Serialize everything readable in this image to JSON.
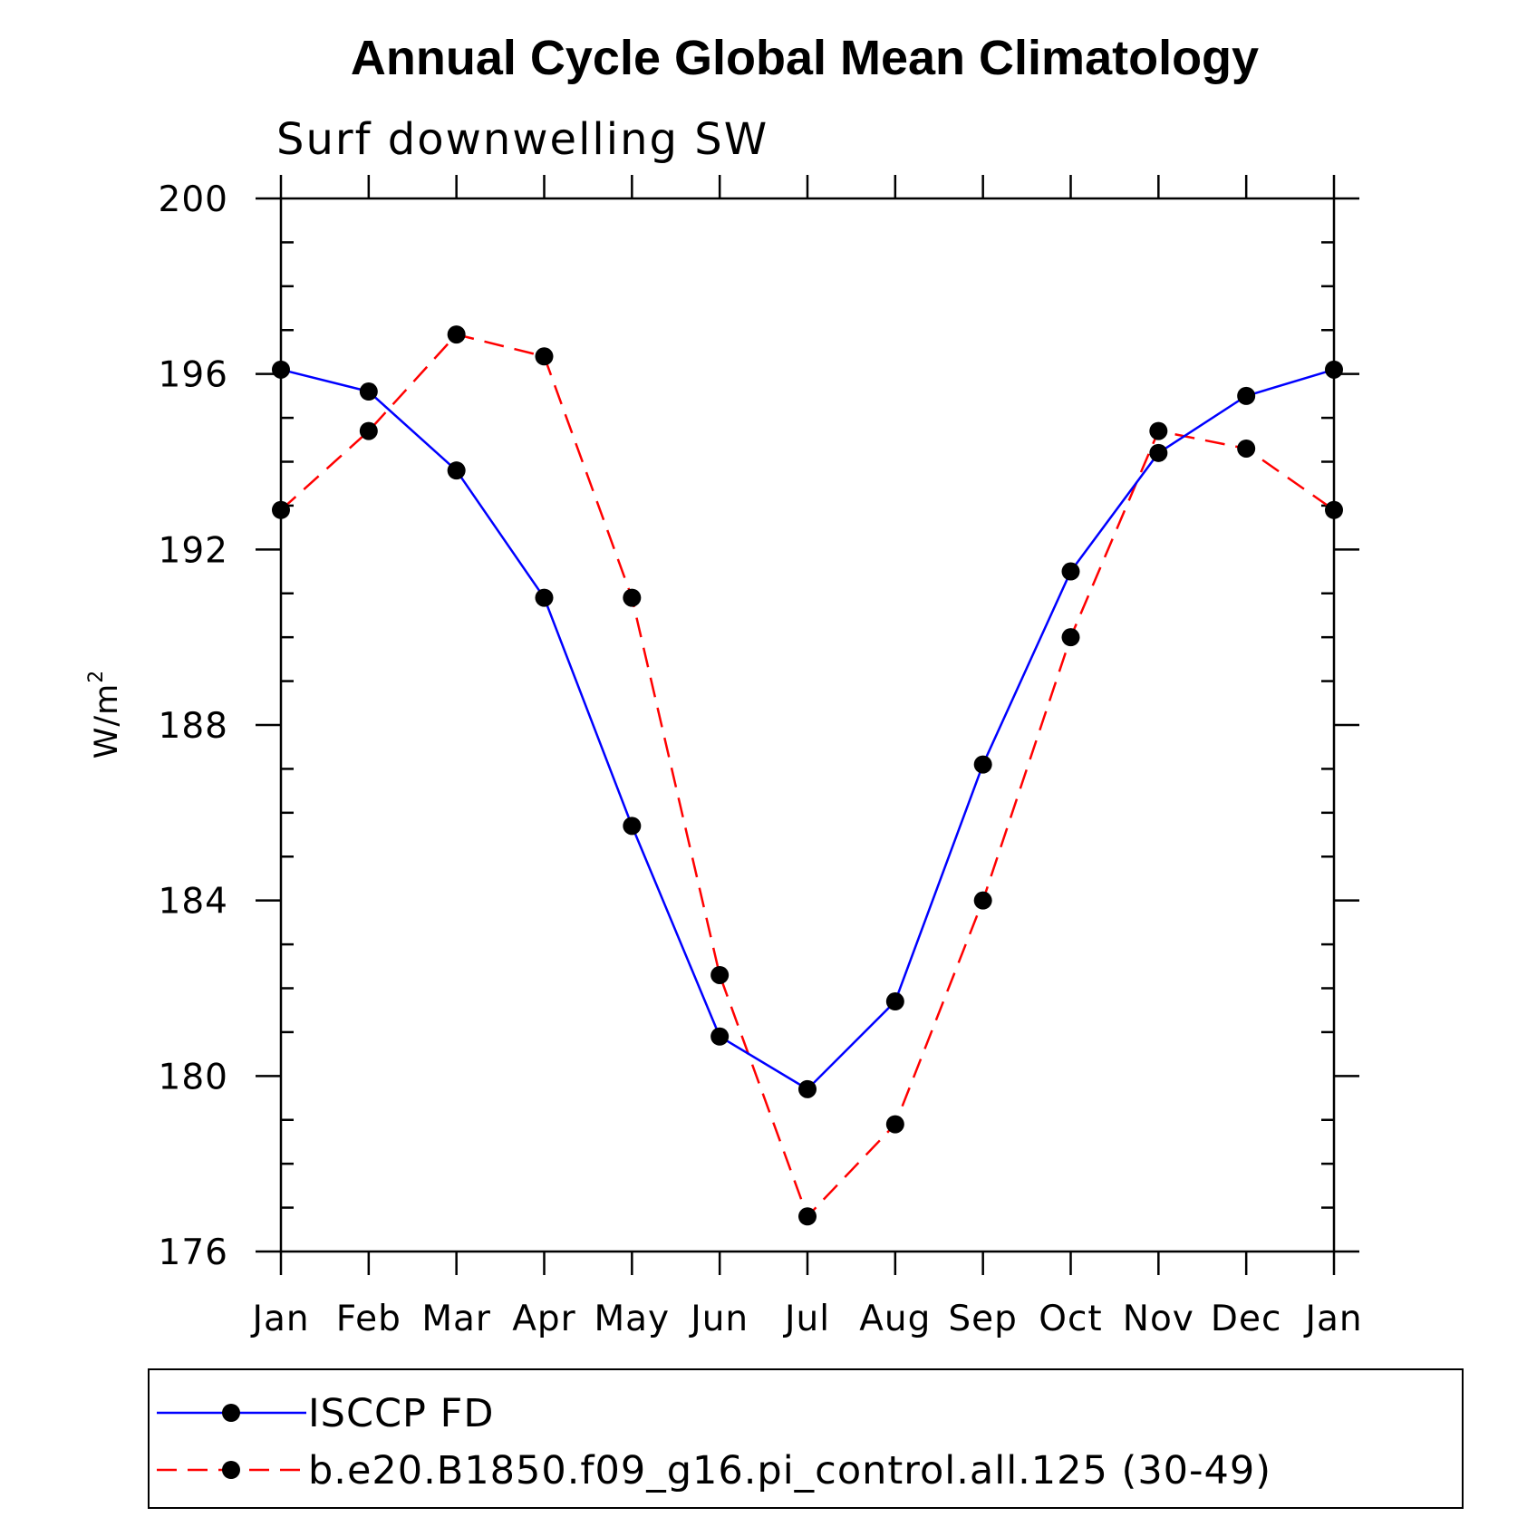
{
  "chart_data": {
    "type": "line",
    "title": "Annual Cycle Global Mean Climatology",
    "subtitle": "Surf downwelling SW",
    "xlabel": "",
    "ylabel": "W/m",
    "ylabel_superscript": "2",
    "categories": [
      "Jan",
      "Feb",
      "Mar",
      "Apr",
      "May",
      "Jun",
      "Jul",
      "Aug",
      "Sep",
      "Oct",
      "Nov",
      "Dec",
      "Jan"
    ],
    "ylim": [
      176,
      200
    ],
    "yticks": [
      176,
      180,
      184,
      188,
      192,
      196,
      200
    ],
    "yticks_minor_step": 1,
    "grid": false,
    "legend_position": "bottom",
    "series": [
      {
        "name": "ISCCP FD",
        "color": "#0000ff",
        "line_style": "solid",
        "marker": "filled-circle",
        "values": [
          196.1,
          195.6,
          193.8,
          190.9,
          185.7,
          180.9,
          179.7,
          181.7,
          187.1,
          191.5,
          194.2,
          195.5,
          196.1
        ]
      },
      {
        "name": "b.e20.B1850.f09_g16.pi_control.all.125 (30-49)",
        "color": "#ff0000",
        "line_style": "dashed",
        "marker": "filled-circle",
        "values": [
          192.9,
          194.7,
          196.9,
          196.4,
          190.9,
          182.3,
          176.8,
          178.9,
          184.0,
          190.0,
          194.7,
          194.3,
          192.9
        ]
      }
    ]
  }
}
